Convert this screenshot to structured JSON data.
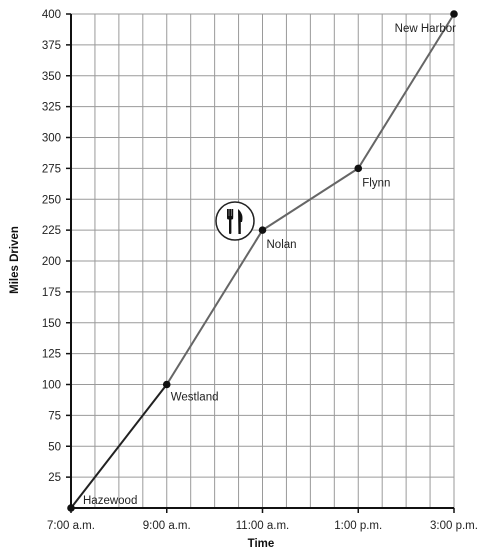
{
  "chart_data": {
    "type": "line",
    "xlabel": "Time",
    "ylabel": "Miles Driven",
    "x_ticks": [
      "7:00 a.m.",
      "9:00 a.m.",
      "11:00 a.m.",
      "1:00 p.m.",
      "3:00 p.m."
    ],
    "y_ticks": [
      25,
      50,
      75,
      100,
      125,
      150,
      175,
      200,
      225,
      250,
      275,
      300,
      325,
      350,
      375,
      400
    ],
    "ylim": [
      0,
      400
    ],
    "grid": true,
    "points": [
      {
        "time": "7:00 a.m.",
        "hour": 7,
        "miles": 0,
        "label": "Hazewood"
      },
      {
        "time": "9:00 a.m.",
        "hour": 9,
        "miles": 100,
        "label": "Westland"
      },
      {
        "time": "11:00 a.m.",
        "hour": 11,
        "miles": 225,
        "label": "Nolan"
      },
      {
        "time": "1:00 p.m.",
        "hour": 13,
        "miles": 275,
        "label": "Flynn"
      },
      {
        "time": "3:00 p.m.",
        "hour": 15,
        "miles": 400,
        "label": "New Harbor"
      }
    ],
    "annotation_icon": "fork-and-knife-icon",
    "colors": {
      "first_segment": "#222222",
      "line": "#666666",
      "grid": "#9a9a9a",
      "axis": "#111111"
    }
  }
}
